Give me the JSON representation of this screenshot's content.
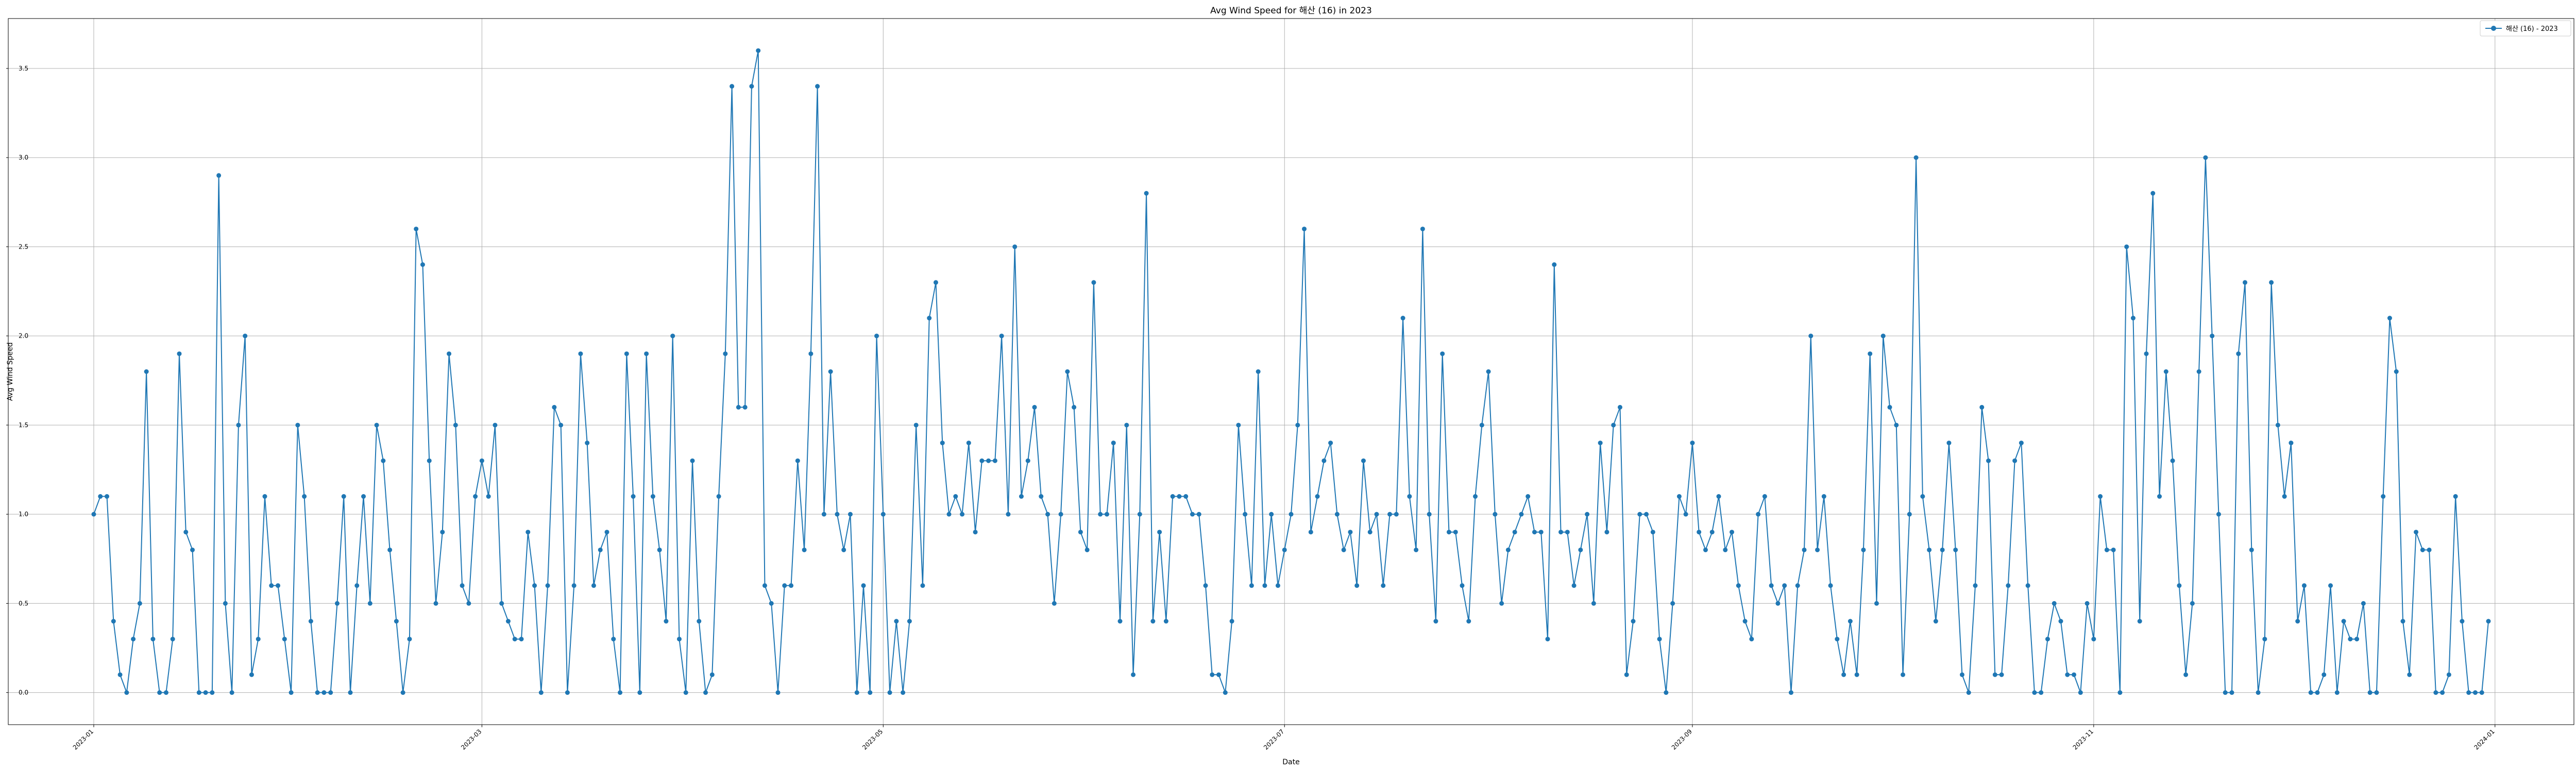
{
  "chart_data": {
    "type": "line",
    "title": "Avg Wind Speed for 해산 (16) in 2023",
    "xlabel": "Date",
    "ylabel": "Avg Wind Speed",
    "x_start": "2023-01-01",
    "xlim": [
      "2022-12-19",
      "2024-01-13"
    ],
    "ylim": [
      -0.18,
      3.78
    ],
    "y_ticks": [
      0.0,
      0.5,
      1.0,
      1.5,
      2.0,
      2.5,
      3.0,
      3.5
    ],
    "y_tick_labels": [
      "0.0",
      "0.5",
      "1.0",
      "1.5",
      "2.0",
      "2.5",
      "3.0",
      "3.5"
    ],
    "x_ticks": [
      "2023-01-01",
      "2023-03-01",
      "2023-05-01",
      "2023-07-01",
      "2023-09-01",
      "2023-11-01",
      "2024-01-01"
    ],
    "x_tick_labels": [
      "2023-01",
      "2023-03",
      "2023-05",
      "2023-07",
      "2023-09",
      "2023-11",
      "2024-01"
    ],
    "grid": true,
    "legend_position": "top-right",
    "series": [
      {
        "name": "해산 (16) - 2023",
        "color": "#1f77b4",
        "marker": "circle",
        "values": [
          1.0,
          1.1,
          1.1,
          0.4,
          0.1,
          0.0,
          0.3,
          0.5,
          1.8,
          0.3,
          0.0,
          0.0,
          0.3,
          1.9,
          0.9,
          0.8,
          0.0,
          0.0,
          0.0,
          2.9,
          0.5,
          0.0,
          1.5,
          2.0,
          0.1,
          0.3,
          1.1,
          0.6,
          0.6,
          0.3,
          0.0,
          1.5,
          1.1,
          0.4,
          0.0,
          0.0,
          0.0,
          0.5,
          1.1,
          0.0,
          0.6,
          1.1,
          0.5,
          1.5,
          1.3,
          0.8,
          0.4,
          0.0,
          0.3,
          2.6,
          2.4,
          1.3,
          0.5,
          0.9,
          1.9,
          1.5,
          0.6,
          0.5,
          1.1,
          1.3,
          1.1,
          1.5,
          0.5,
          0.4,
          0.3,
          0.3,
          0.9,
          0.6,
          0.0,
          0.6,
          1.6,
          1.5,
          0.0,
          0.6,
          1.9,
          1.4,
          0.6,
          0.8,
          0.9,
          0.3,
          0.0,
          1.9,
          1.1,
          0.0,
          1.9,
          1.1,
          0.8,
          0.4,
          2.0,
          0.3,
          0.0,
          1.3,
          0.4,
          0.0,
          0.1,
          1.1,
          1.9,
          3.4,
          1.6,
          1.6,
          3.4,
          3.6,
          0.6,
          0.5,
          0.0,
          0.6,
          0.6,
          1.3,
          0.8,
          1.9,
          3.4,
          1.0,
          1.8,
          1.0,
          0.8,
          1.0,
          0.0,
          0.6,
          0.0,
          2.0,
          1.0,
          0.0,
          0.4,
          0.0,
          0.4,
          1.5,
          0.6,
          2.1,
          2.3,
          1.4,
          1.0,
          1.1,
          1.0,
          1.4,
          0.9,
          1.3,
          1.3,
          1.3,
          2.0,
          1.0,
          2.5,
          1.1,
          1.3,
          1.6,
          1.1,
          1.0,
          0.5,
          1.0,
          1.8,
          1.6,
          0.9,
          0.8,
          2.3,
          1.0,
          1.0,
          1.4,
          0.4,
          1.5,
          0.1,
          1.0,
          2.8,
          0.4,
          0.9,
          0.4,
          1.1,
          1.1,
          1.1,
          1.0,
          1.0,
          0.6,
          0.1,
          0.1,
          0.0,
          0.4,
          1.5,
          1.0,
          0.6,
          1.8,
          0.6,
          1.0,
          0.6,
          0.8,
          1.0,
          1.5,
          2.6,
          0.9,
          1.1,
          1.3,
          1.4,
          1.0,
          0.8,
          0.9,
          0.6,
          1.3,
          0.9,
          1.0,
          0.6,
          1.0,
          1.0,
          2.1,
          1.1,
          0.8,
          2.6,
          1.0,
          0.4,
          1.9,
          0.9,
          0.9,
          0.6,
          0.4,
          1.1,
          1.5,
          1.8,
          1.0,
          0.5,
          0.8,
          0.9,
          1.0,
          1.1,
          0.9,
          0.9,
          0.3,
          2.4,
          0.9,
          0.9,
          0.6,
          0.8,
          1.0,
          0.5,
          1.4,
          0.9,
          1.5,
          1.6,
          0.1,
          0.4,
          1.0,
          1.0,
          0.9,
          0.3,
          0.0,
          0.5,
          1.1,
          1.0,
          1.4,
          0.9,
          0.8,
          0.9,
          1.1,
          0.8,
          0.9,
          0.6,
          0.4,
          0.3,
          1.0,
          1.1,
          0.6,
          0.5,
          0.6,
          0.0,
          0.6,
          0.8,
          2.0,
          0.8,
          1.1,
          0.6,
          0.3,
          0.1,
          0.4,
          0.1,
          0.8,
          1.9,
          0.5,
          2.0,
          1.6,
          1.5,
          0.1,
          1.0,
          3.0,
          1.1,
          0.8,
          0.4,
          0.8,
          1.4,
          0.8,
          0.1,
          0.0,
          0.6,
          1.6,
          1.3,
          0.1,
          0.1,
          0.6,
          1.3,
          1.4,
          0.6,
          0.0,
          0.0,
          0.3,
          0.5,
          0.4,
          0.1,
          0.1,
          0.0,
          0.5,
          0.3,
          1.1,
          0.8,
          0.8,
          0.0,
          2.5,
          2.1,
          0.4,
          1.9,
          2.8,
          1.1,
          1.8,
          1.3,
          0.6,
          0.1,
          0.5,
          1.8,
          3.0,
          2.0,
          1.0,
          0.0,
          0.0,
          1.9,
          2.3,
          0.8,
          0.0,
          0.3,
          2.3,
          1.5,
          1.1,
          1.4,
          0.4,
          0.6,
          0.0,
          0.0,
          0.1,
          0.6,
          0.0,
          0.4,
          0.3,
          0.3,
          0.5,
          0.0,
          0.0,
          1.1,
          2.1,
          1.8,
          0.4,
          0.1,
          0.9,
          0.8,
          0.8,
          0.0,
          0.0,
          0.1,
          1.1,
          0.4,
          0.0,
          0.0,
          0.0,
          0.4
        ]
      }
    ]
  }
}
